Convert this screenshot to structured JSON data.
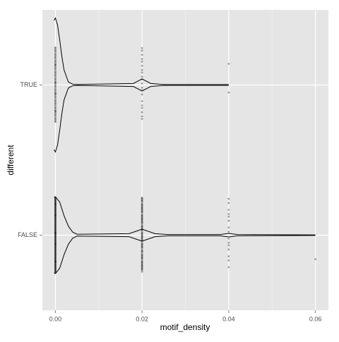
{
  "chart_data": {
    "type": "violin",
    "x_label": "motif_density",
    "y_label": "different",
    "categories": [
      "FALSE",
      "TRUE"
    ],
    "xlim": [
      -0.003,
      0.063
    ],
    "xticks": [
      {
        "value": 0,
        "label": "0.00"
      },
      0.02,
      0.04,
      0.06
    ],
    "xminor": [
      0.01,
      0.03,
      0.05
    ],
    "grid": true,
    "violins": [
      {
        "density_x": [
          -0.0003,
          0,
          0.001,
          0.002,
          0.003,
          0.004,
          0.005,
          0.017,
          0.019,
          0.02,
          0.021,
          0.023,
          0.026,
          0.038,
          0.04,
          0.042,
          0.06
        ],
        "density_width": [
          0.25,
          0.256,
          0.22,
          0.13,
          0.06,
          0.02,
          0.006,
          0.01,
          0.03,
          0.04,
          0.03,
          0.01,
          0.004,
          0.004,
          0.012,
          0.004,
          0.002
        ],
        "points_x": [
          0,
          0.02,
          0.04,
          0.06
        ],
        "points_count": [
          150,
          80,
          15,
          1
        ]
      },
      {
        "density_x": [
          -0.0003,
          0,
          0.0005,
          0.001,
          0.0015,
          0.002,
          0.003,
          0.004,
          0.005,
          0.018,
          0.02,
          0.022,
          0.025,
          0.04
        ],
        "density_width": [
          0.43,
          0.446,
          0.4,
          0.3,
          0.19,
          0.1,
          0.02,
          0.005,
          0.003,
          0.01,
          0.04,
          0.01,
          0.003,
          0.003
        ],
        "points_x": [
          0,
          0.02,
          0.04
        ],
        "points_count": [
          60,
          20,
          2
        ]
      }
    ]
  }
}
